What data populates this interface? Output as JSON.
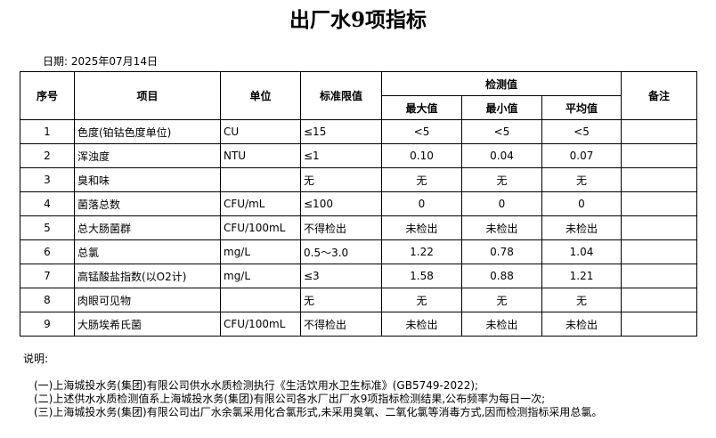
{
  "title": "出厂水9项指标",
  "date_label": "日期:",
  "date": "2025年07月14日",
  "headers": {
    "seq": "序号",
    "item": "项目",
    "unit": "单位",
    "std": "标准限值",
    "measured": "检测值",
    "max": "最大值",
    "min": "最小值",
    "avg": "平均值",
    "note": "备注"
  },
  "rows": [
    {
      "seq": "1",
      "item": "色度(铂钴色度单位)",
      "unit": "CU",
      "std": "≤15",
      "max": "<5",
      "min": "<5",
      "avg": "<5",
      "note": ""
    },
    {
      "seq": "2",
      "item": "浑浊度",
      "unit": "NTU",
      "std": "≤1",
      "max": "0.10",
      "min": "0.04",
      "avg": "0.07",
      "note": ""
    },
    {
      "seq": "3",
      "item": "臭和味",
      "unit": "",
      "std": "无",
      "max": "无",
      "min": "无",
      "avg": "无",
      "note": ""
    },
    {
      "seq": "4",
      "item": "菌落总数",
      "unit": "CFU/mL",
      "std": "≤100",
      "max": "0",
      "min": "0",
      "avg": "0",
      "note": ""
    },
    {
      "seq": "5",
      "item": "总大肠菌群",
      "unit": "CFU/100mL",
      "std": "不得检出",
      "max": "未检出",
      "min": "未检出",
      "avg": "未检出",
      "note": ""
    },
    {
      "seq": "6",
      "item": "总氯",
      "unit": "mg/L",
      "std": "0.5～3.0",
      "max": "1.22",
      "min": "0.78",
      "avg": "1.04",
      "note": ""
    },
    {
      "seq": "7",
      "item": "高锰酸盐指数(以O2计)",
      "unit": "mg/L",
      "std": "≤3",
      "max": "1.58",
      "min": "0.88",
      "avg": "1.21",
      "note": ""
    },
    {
      "seq": "8",
      "item": "肉眼可见物",
      "unit": "",
      "std": "无",
      "max": "无",
      "min": "无",
      "avg": "无",
      "note": ""
    },
    {
      "seq": "9",
      "item": "大肠埃希氏菌",
      "unit": "CFU/100mL",
      "std": "不得检出",
      "max": "未检出",
      "min": "未检出",
      "avg": "未检出",
      "note": ""
    }
  ],
  "notes": {
    "heading": "说明:",
    "lines": [
      "(一)上海城投水务(集团)有限公司供水水质检测执行《生活饮用水卫生标准》(GB5749-2022);",
      "(二)上述供水水质检测值系上海城投水务(集团)有限公司各水厂出厂水9项指标检测结果,公布频率为每日一次;",
      "(三)上海城投水务(集团)有限公司出厂水余氯采用化合氯形式,未采用臭氧、二氧化氯等消毒方式,因而检测指标采用总氯。"
    ]
  }
}
